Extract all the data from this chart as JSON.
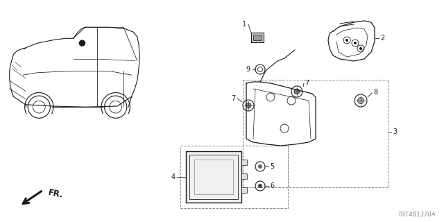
{
  "bg_color": "#ffffff",
  "line_color": "#1a1a1a",
  "gray_color": "#888888",
  "diagram_code": "TRT4B1370A",
  "fr_label": "FR.",
  "fig_width": 6.4,
  "fig_height": 3.2,
  "dpi": 100
}
